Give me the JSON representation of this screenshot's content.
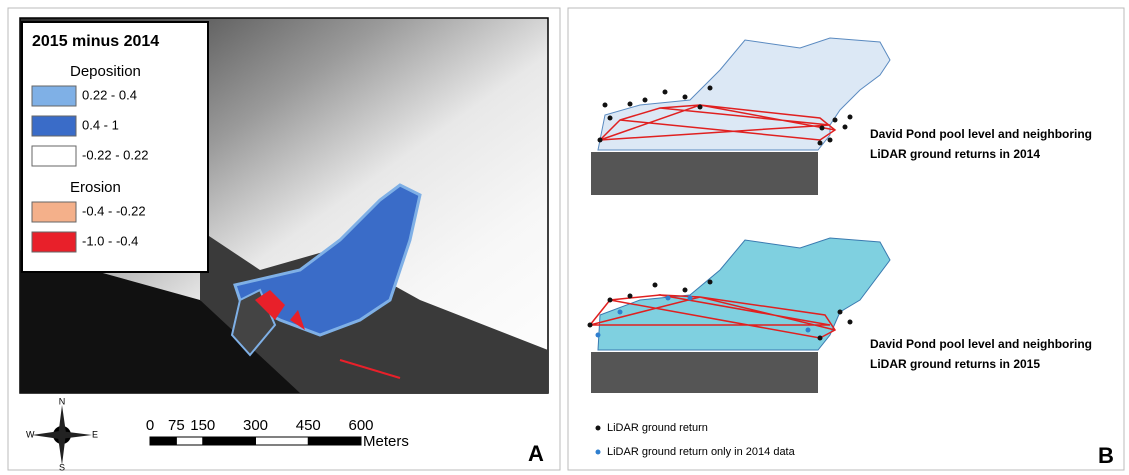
{
  "panel_a": {
    "legend": {
      "title": "2015 minus 2014",
      "groups": [
        {
          "name": "Deposition",
          "items": [
            {
              "label": "0.22 - 0.4",
              "color": "#7fb0e6"
            },
            {
              "label": "0.4 - 1",
              "color": "#3a6cc8"
            },
            {
              "label": "-0.22 - 0.22",
              "color": "#ffffff"
            }
          ]
        },
        {
          "name": "Erosion",
          "items": [
            {
              "label": "-0.4 - -0.22",
              "color": "#f4b08a"
            },
            {
              "label": "-1.0 - -0.4",
              "color": "#e8202a"
            }
          ]
        }
      ]
    },
    "compass": {
      "n": "N",
      "s": "S",
      "e": "E",
      "w": "W"
    },
    "scale_bar": {
      "ticks": [
        0,
        75,
        150,
        300,
        450,
        600
      ],
      "unit": "Meters"
    },
    "label": "A"
  },
  "panel_b": {
    "captions": [
      [
        "David Pond pool level and neighboring",
        "LiDAR ground returns in 2014"
      ],
      [
        "David Pond pool level and neighboring",
        "LiDAR ground returns in 2015"
      ]
    ],
    "legend": [
      {
        "label": "LiDAR ground return",
        "color": "#111111"
      },
      {
        "label": "LiDAR ground return only in 2014 data",
        "color": "#2f7fcf"
      }
    ],
    "label": "B"
  }
}
